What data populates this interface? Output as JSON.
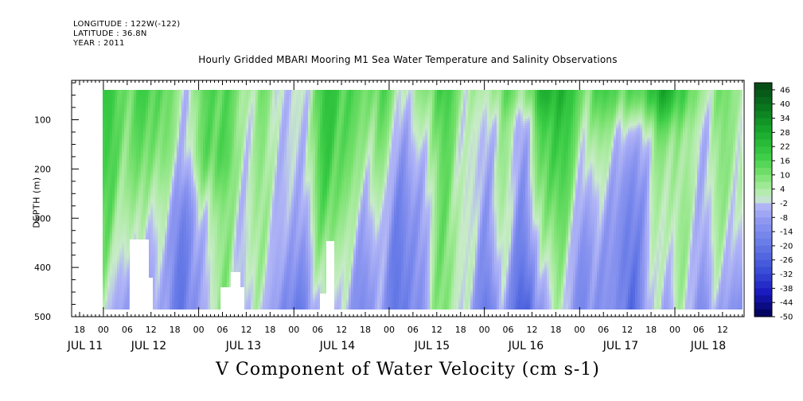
{
  "header": {
    "longitude": "LONGITUDE : 122W(-122)",
    "latitude": "LATITUDE : 36.8N",
    "year": "YEAR : 2011"
  },
  "chart_data": {
    "type": "heatmap",
    "title": "Hourly Gridded MBARI Mooring M1 Sea Water Temperature and Salinity Observations",
    "xlabel": "V Component of Water Velocity (cm s-1)",
    "ylabel": "DEPTH (m)",
    "y_ticks": [
      100,
      200,
      300,
      400,
      500
    ],
    "y_tick_labels": [
      "100",
      "200",
      "300",
      "400",
      "500"
    ],
    "ylim": [
      500,
      20
    ],
    "x_hour_labels": [
      "18",
      "00",
      "06",
      "12",
      "18",
      "00",
      "06",
      "12",
      "18",
      "00",
      "06",
      "12",
      "18",
      "00",
      "06",
      "12",
      "18",
      "00",
      "06",
      "12",
      "18",
      "00",
      "06",
      "12",
      "18",
      "00",
      "06",
      "12"
    ],
    "x_day_labels": [
      "JUL 11",
      "JUL 12",
      "JUL 13",
      "JUL 14",
      "JUL 15",
      "JUL 16",
      "JUL 17",
      "JUL 18"
    ],
    "colorbar": {
      "labels": [
        "46",
        "40",
        "34",
        "28",
        "22",
        "16",
        "10",
        "4",
        "-2",
        "-8",
        "-14",
        "-20",
        "-26",
        "-32",
        "-38",
        "-44",
        "-50"
      ],
      "min": -50,
      "max": 49,
      "step": 3
    },
    "grid": false,
    "colorbar_position": "right"
  }
}
